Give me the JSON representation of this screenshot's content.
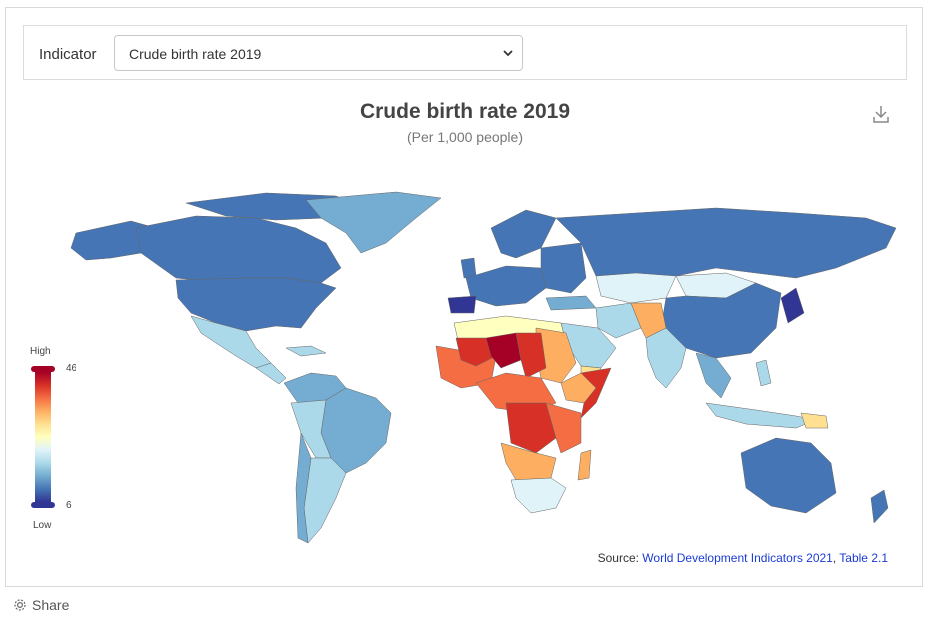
{
  "indicator": {
    "label": "Indicator",
    "selected": "Crude birth rate 2019"
  },
  "chart": {
    "title": "Crude birth rate 2019",
    "subtitle": "(Per 1,000 people)",
    "download_icon": "download-icon"
  },
  "legend": {
    "high_label": "High",
    "low_label": "Low",
    "max_value": "46",
    "min_value": "6",
    "colors": [
      "#a50026",
      "#d73027",
      "#f46d43",
      "#fdae61",
      "#fee090",
      "#ffffbf",
      "#e0f3f8",
      "#abd9e9",
      "#74add1",
      "#4575b4",
      "#313695"
    ]
  },
  "source": {
    "prefix": "Source: ",
    "link1": "World Development Indicators 2021",
    "separator": ", ",
    "link2": "Table 2.1"
  },
  "share": {
    "label": "Share",
    "icon": "gear-icon"
  },
  "map_colors": {
    "very_high": "#a50026",
    "high": "#d73027",
    "mid_high": "#f46d43",
    "mid": "#fdae61",
    "mid_low": "#fee090",
    "neutral": "#ffffbf",
    "low": "#e0f3f8",
    "lower": "#abd9e9",
    "low2": "#74add1",
    "lowest": "#4575b4",
    "very_low": "#313695"
  }
}
